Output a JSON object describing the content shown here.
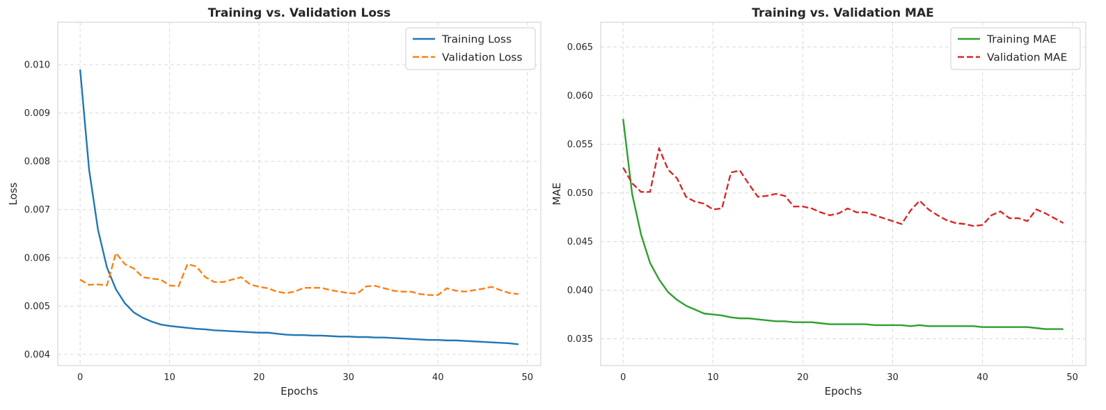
{
  "chart_data": [
    {
      "type": "line",
      "title": "Training vs. Validation Loss",
      "xlabel": "Epochs",
      "ylabel": "Loss",
      "xlim": [
        -2.5,
        51.5
      ],
      "ylim": [
        0.00377,
        0.01088
      ],
      "xticks": [
        0,
        10,
        20,
        30,
        40,
        50
      ],
      "yticks": [
        0.004,
        0.005,
        0.006,
        0.007,
        0.008,
        0.009,
        0.01
      ],
      "ytick_labels": [
        "0.004",
        "0.005",
        "0.006",
        "0.007",
        "0.008",
        "0.009",
        "0.010"
      ],
      "grid": true,
      "legend": "top-right",
      "x": [
        0,
        1,
        2,
        3,
        4,
        5,
        6,
        7,
        8,
        9,
        10,
        11,
        12,
        13,
        14,
        15,
        16,
        17,
        18,
        19,
        20,
        21,
        22,
        23,
        24,
        25,
        26,
        27,
        28,
        29,
        30,
        31,
        32,
        33,
        34,
        35,
        36,
        37,
        38,
        39,
        40,
        41,
        42,
        43,
        44,
        45,
        46,
        47,
        48,
        49
      ],
      "series": [
        {
          "name": "Training Loss",
          "color": "#1f77b4",
          "style": "solid",
          "values": [
            0.0099,
            0.00783,
            0.00658,
            0.0058,
            0.00535,
            0.00506,
            0.00487,
            0.00476,
            0.00468,
            0.00462,
            0.00459,
            0.00457,
            0.00455,
            0.00453,
            0.00452,
            0.0045,
            0.00449,
            0.00448,
            0.00447,
            0.00446,
            0.00445,
            0.00445,
            0.00443,
            0.00441,
            0.0044,
            0.0044,
            0.00439,
            0.00439,
            0.00438,
            0.00437,
            0.00437,
            0.00436,
            0.00436,
            0.00435,
            0.00435,
            0.00434,
            0.00433,
            0.00432,
            0.00431,
            0.0043,
            0.0043,
            0.00429,
            0.00429,
            0.00428,
            0.00427,
            0.00426,
            0.00425,
            0.00424,
            0.00423,
            0.00421
          ]
        },
        {
          "name": "Validation Loss",
          "color": "#ff7f0e",
          "style": "dashed",
          "values": [
            0.00555,
            0.00544,
            0.00545,
            0.00543,
            0.0061,
            0.00587,
            0.00578,
            0.0056,
            0.00557,
            0.00555,
            0.00543,
            0.00541,
            0.00587,
            0.00582,
            0.0056,
            0.0055,
            0.0055,
            0.00555,
            0.0056,
            0.00545,
            0.0054,
            0.00537,
            0.0053,
            0.00527,
            0.0053,
            0.00538,
            0.00538,
            0.00538,
            0.00533,
            0.0053,
            0.00527,
            0.00526,
            0.00541,
            0.00542,
            0.00537,
            0.00532,
            0.0053,
            0.0053,
            0.00525,
            0.00523,
            0.00523,
            0.00537,
            0.00532,
            0.0053,
            0.00533,
            0.00536,
            0.0054,
            0.00533,
            0.00527,
            0.00525
          ]
        }
      ]
    },
    {
      "type": "line",
      "title": "Training vs. Validation MAE",
      "xlabel": "Epochs",
      "ylabel": "MAE",
      "xlim": [
        -2.5,
        51.5
      ],
      "ylim": [
        0.03225,
        0.06755
      ],
      "xticks": [
        0,
        10,
        20,
        30,
        40,
        50
      ],
      "yticks": [
        0.035,
        0.04,
        0.045,
        0.05,
        0.055,
        0.06,
        0.065
      ],
      "ytick_labels": [
        "0.035",
        "0.040",
        "0.045",
        "0.050",
        "0.055",
        "0.060",
        "0.065"
      ],
      "grid": true,
      "legend": "top-right",
      "x": [
        0,
        1,
        2,
        3,
        4,
        5,
        6,
        7,
        8,
        9,
        10,
        11,
        12,
        13,
        14,
        15,
        16,
        17,
        18,
        19,
        20,
        21,
        22,
        23,
        24,
        25,
        26,
        27,
        28,
        29,
        30,
        31,
        32,
        33,
        34,
        35,
        36,
        37,
        38,
        39,
        40,
        41,
        42,
        43,
        44,
        45,
        46,
        47,
        48,
        49
      ],
      "series": [
        {
          "name": "Training MAE",
          "color": "#2ca02c",
          "style": "solid",
          "values": [
            0.0576,
            0.0499,
            0.0457,
            0.0428,
            0.0411,
            0.0398,
            0.039,
            0.0384,
            0.038,
            0.0376,
            0.0375,
            0.0374,
            0.0372,
            0.0371,
            0.0371,
            0.037,
            0.0369,
            0.0368,
            0.0368,
            0.0367,
            0.0367,
            0.0367,
            0.0366,
            0.0365,
            0.0365,
            0.0365,
            0.0365,
            0.0365,
            0.0364,
            0.0364,
            0.0364,
            0.0364,
            0.0363,
            0.0364,
            0.0363,
            0.0363,
            0.0363,
            0.0363,
            0.0363,
            0.0363,
            0.0362,
            0.0362,
            0.0362,
            0.0362,
            0.0362,
            0.0362,
            0.0361,
            0.036,
            0.036,
            0.036
          ]
        },
        {
          "name": "Validation MAE",
          "color": "#d62728",
          "style": "dashed",
          "values": [
            0.0526,
            0.051,
            0.0501,
            0.0501,
            0.0546,
            0.0524,
            0.0515,
            0.0496,
            0.0491,
            0.0489,
            0.0483,
            0.0484,
            0.0521,
            0.0523,
            0.0509,
            0.0496,
            0.0497,
            0.0499,
            0.0497,
            0.0486,
            0.0486,
            0.0484,
            0.048,
            0.0477,
            0.0479,
            0.0484,
            0.048,
            0.048,
            0.0477,
            0.0474,
            0.0471,
            0.0468,
            0.0482,
            0.0492,
            0.0483,
            0.0477,
            0.0472,
            0.0469,
            0.0468,
            0.0466,
            0.0467,
            0.0477,
            0.0481,
            0.0474,
            0.0474,
            0.0471,
            0.0483,
            0.0479,
            0.0474,
            0.0469
          ]
        }
      ]
    }
  ]
}
